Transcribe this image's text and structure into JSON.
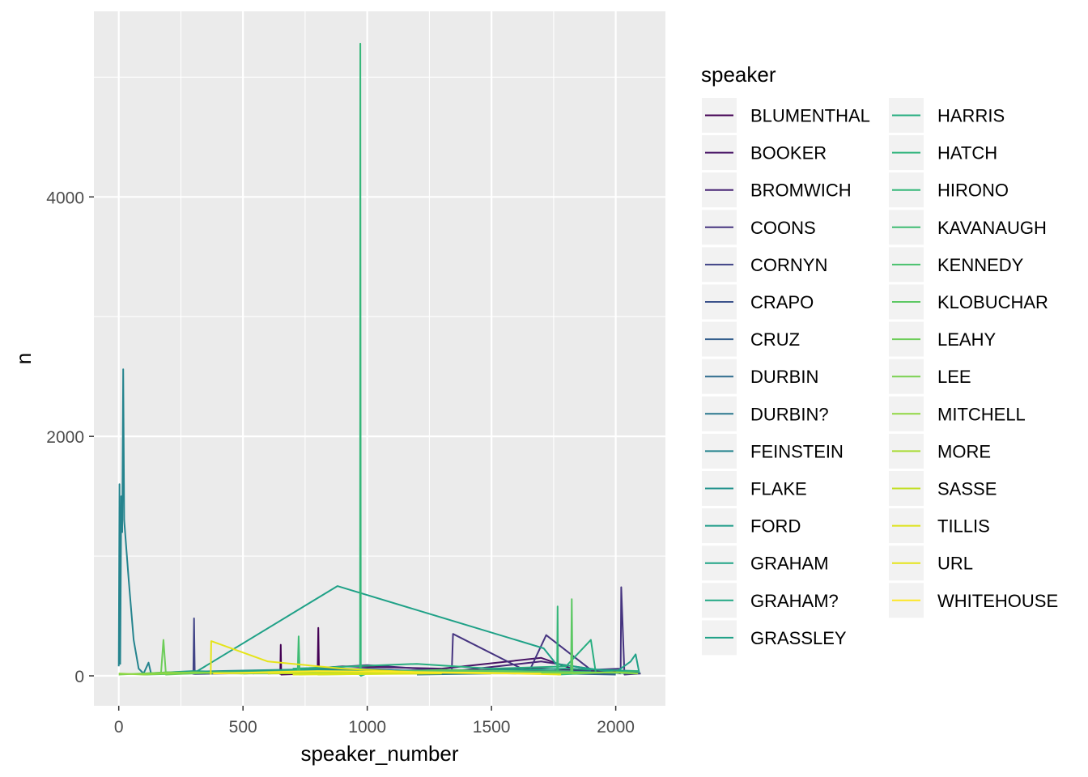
{
  "chart_data": {
    "type": "line",
    "title": "",
    "xlabel": "speaker_number",
    "ylabel": "n",
    "xlim": [
      -100,
      2200
    ],
    "ylim": [
      -250,
      5550
    ],
    "x_ticks": [
      0,
      500,
      1000,
      1500,
      2000
    ],
    "x_tick_labels": [
      "0",
      "500",
      "1000",
      "1500",
      "2000"
    ],
    "y_ticks": [
      0,
      2000,
      4000
    ],
    "y_tick_labels": [
      "0",
      "2000",
      "4000"
    ],
    "grid": true,
    "legend": {
      "title": "speaker",
      "position": "right",
      "columns": 2
    },
    "series": [
      {
        "name": "BLUMENTHAL",
        "color": "#440154",
        "points": [
          [
            650,
            10
          ],
          [
            652,
            260
          ],
          [
            654,
            10
          ],
          [
            800,
            20
          ],
          [
            803,
            400
          ],
          [
            806,
            15
          ],
          [
            1100,
            30
          ],
          [
            1700,
            60
          ],
          [
            2000,
            40
          ],
          [
            2100,
            20
          ]
        ]
      },
      {
        "name": "BOOKER",
        "color": "#471365",
        "points": [
          [
            540,
            20
          ],
          [
            900,
            80
          ],
          [
            1300,
            60
          ],
          [
            1700,
            150
          ],
          [
            1850,
            40
          ],
          [
            2050,
            30
          ]
        ]
      },
      {
        "name": "BROMWICH",
        "color": "#482475",
        "points": [
          [
            560,
            30
          ],
          [
            1000,
            90
          ],
          [
            1350,
            40
          ],
          [
            1700,
            120
          ],
          [
            2020,
            20
          ]
        ]
      },
      {
        "name": "COONS",
        "color": "#463480",
        "points": [
          [
            600,
            40
          ],
          [
            1000,
            60
          ],
          [
            1340,
            20
          ],
          [
            1345,
            350
          ],
          [
            1650,
            30
          ],
          [
            1720,
            340
          ],
          [
            1900,
            50
          ],
          [
            2020,
            60
          ],
          [
            2022,
            740
          ],
          [
            2035,
            10
          ],
          [
            2100,
            20
          ]
        ]
      },
      {
        "name": "CORNYN",
        "color": "#414487",
        "points": [
          [
            300,
            10
          ],
          [
            303,
            480
          ],
          [
            306,
            15
          ],
          [
            700,
            30
          ],
          [
            1300,
            50
          ],
          [
            1800,
            40
          ],
          [
            2080,
            20
          ]
        ]
      },
      {
        "name": "CRAPO",
        "color": "#3B528B",
        "points": [
          [
            1400,
            30
          ],
          [
            1600,
            50
          ],
          [
            2000,
            20
          ]
        ]
      },
      {
        "name": "CRUZ",
        "color": "#355F8D",
        "points": [
          [
            500,
            20
          ],
          [
            1100,
            40
          ],
          [
            1500,
            30
          ],
          [
            2000,
            10
          ]
        ]
      },
      {
        "name": "DURBIN",
        "color": "#2F6C8E",
        "points": [
          [
            400,
            30
          ],
          [
            900,
            50
          ],
          [
            1400,
            20
          ],
          [
            1900,
            40
          ]
        ]
      },
      {
        "name": "DURBIN?",
        "color": "#2A788E",
        "points": [
          [
            1200,
            10
          ],
          [
            1500,
            20
          ]
        ]
      },
      {
        "name": "FEINSTEIN",
        "color": "#25848E",
        "points": [
          [
            0,
            80
          ],
          [
            3,
            1600
          ],
          [
            6,
            100
          ],
          [
            10,
            1500
          ],
          [
            14,
            1200
          ],
          [
            18,
            2560
          ],
          [
            22,
            1300
          ],
          [
            40,
            800
          ],
          [
            60,
            300
          ],
          [
            80,
            60
          ],
          [
            100,
            20
          ],
          [
            120,
            110
          ],
          [
            130,
            20
          ],
          [
            200,
            30
          ],
          [
            400,
            40
          ],
          [
            900,
            60
          ],
          [
            1400,
            30
          ],
          [
            2090,
            30
          ]
        ]
      },
      {
        "name": "FLAKE",
        "color": "#21918C",
        "points": [
          [
            600,
            20
          ],
          [
            1000,
            40
          ],
          [
            1600,
            30
          ]
        ]
      },
      {
        "name": "FORD",
        "color": "#1E9C89",
        "points": [
          [
            100,
            20
          ],
          [
            300,
            40
          ],
          [
            500,
            30
          ]
        ]
      },
      {
        "name": "GRAHAM",
        "color": "#20A486",
        "points": [
          [
            250,
            30
          ],
          [
            700,
            50
          ],
          [
            1200,
            30
          ],
          [
            1800,
            60
          ],
          [
            2090,
            40
          ]
        ]
      },
      {
        "name": "GRAHAM?",
        "color": "#22A884",
        "points": [
          [
            1000,
            20
          ],
          [
            1300,
            30
          ]
        ]
      },
      {
        "name": "GRASSLEY",
        "color": "#1FA187",
        "points": [
          [
            300,
            20
          ],
          [
            880,
            750
          ],
          [
            1710,
            230
          ],
          [
            1760,
            100
          ],
          [
            2000,
            30
          ],
          [
            2060,
            120
          ],
          [
            2080,
            180
          ],
          [
            2095,
            20
          ]
        ]
      },
      {
        "name": "HARRIS",
        "color": "#28AE80",
        "points": [
          [
            700,
            60
          ],
          [
            1200,
            100
          ],
          [
            1500,
            60
          ],
          [
            1800,
            80
          ],
          [
            1900,
            300
          ],
          [
            1920,
            20
          ]
        ]
      },
      {
        "name": "HATCH",
        "color": "#2FB47C",
        "points": [
          [
            500,
            30
          ],
          [
            900,
            40
          ],
          [
            1300,
            30
          ]
        ]
      },
      {
        "name": "HIRONO",
        "color": "#35B779",
        "points": [
          [
            971,
            0
          ],
          [
            972,
            5280
          ],
          [
            974,
            0
          ],
          [
            1000,
            20
          ],
          [
            1300,
            40
          ],
          [
            1600,
            30
          ],
          [
            1764,
            20
          ],
          [
            1766,
            580
          ],
          [
            1768,
            10
          ],
          [
            2090,
            40
          ]
        ]
      },
      {
        "name": "KAVANAUGH",
        "color": "#3FBC73",
        "points": [
          [
            100,
            10
          ],
          [
            500,
            30
          ],
          [
            720,
            20
          ],
          [
            724,
            330
          ],
          [
            728,
            10
          ],
          [
            1000,
            40
          ],
          [
            1400,
            30
          ],
          [
            1750,
            40
          ],
          [
            2080,
            20
          ]
        ]
      },
      {
        "name": "KENNEDY",
        "color": "#4AC16D",
        "points": [
          [
            800,
            20
          ],
          [
            1200,
            40
          ],
          [
            1700,
            30
          ]
        ]
      },
      {
        "name": "KLOBUCHAR",
        "color": "#5CC863",
        "points": [
          [
            380,
            20
          ],
          [
            700,
            40
          ],
          [
            1000,
            30
          ],
          [
            1300,
            50
          ],
          [
            1820,
            30
          ],
          [
            1823,
            640
          ],
          [
            1826,
            20
          ],
          [
            2000,
            30
          ]
        ]
      },
      {
        "name": "LEAHY",
        "color": "#6DCD59",
        "points": [
          [
            170,
            20
          ],
          [
            180,
            300
          ],
          [
            190,
            10
          ],
          [
            400,
            30
          ],
          [
            800,
            20
          ],
          [
            1200,
            30
          ],
          [
            1600,
            20
          ]
        ]
      },
      {
        "name": "LEE",
        "color": "#7AD151",
        "points": [
          [
            0,
            10
          ],
          [
            200,
            30
          ],
          [
            500,
            20
          ],
          [
            900,
            30
          ]
        ]
      },
      {
        "name": "MITCHELL",
        "color": "#90D743",
        "points": [
          [
            0,
            20
          ],
          [
            100,
            10
          ],
          [
            300,
            30
          ],
          [
            500,
            20
          ],
          [
            800,
            30
          ],
          [
            1100,
            20
          ],
          [
            1400,
            30
          ],
          [
            1700,
            20
          ],
          [
            2000,
            30
          ],
          [
            2090,
            20
          ]
        ]
      },
      {
        "name": "MORE",
        "color": "#A8DB34",
        "points": [
          [
            800,
            10
          ],
          [
            1200,
            20
          ]
        ]
      },
      {
        "name": "SASSE",
        "color": "#C2DF23",
        "points": [
          [
            600,
            20
          ],
          [
            1100,
            30
          ],
          [
            1500,
            20
          ]
        ]
      },
      {
        "name": "TILLIS",
        "color": "#DDE318",
        "points": [
          [
            700,
            10
          ],
          [
            1300,
            20
          ]
        ]
      },
      {
        "name": "URL",
        "color": "#E5E419",
        "points": [
          [
            370,
            10
          ],
          [
            372,
            290
          ],
          [
            600,
            120
          ],
          [
            900,
            60
          ],
          [
            1200,
            30
          ],
          [
            1600,
            20
          ],
          [
            1780,
            10
          ]
        ]
      },
      {
        "name": "WHITEHOUSE",
        "color": "#FDE725",
        "points": [
          [
            380,
            20
          ],
          [
            800,
            40
          ],
          [
            1300,
            30
          ],
          [
            1700,
            20
          ]
        ]
      }
    ]
  }
}
